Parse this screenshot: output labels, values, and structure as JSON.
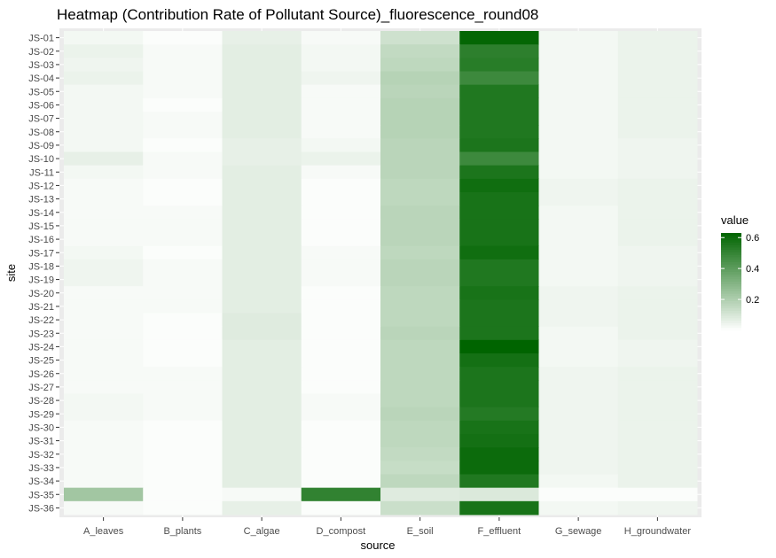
{
  "chart_data": {
    "type": "heatmap",
    "title": "Heatmap (Contribution Rate of Pollutant Source)_fluorescence_round08",
    "xlabel": "source",
    "ylabel": "site",
    "x_categories": [
      "A_leaves",
      "B_plants",
      "C_algae",
      "D_compost",
      "E_soil",
      "F_effluent",
      "G_sewage",
      "H_groundwater"
    ],
    "y_categories": [
      "JS-01",
      "JS-02",
      "JS-03",
      "JS-04",
      "JS-05",
      "JS-06",
      "JS-07",
      "JS-08",
      "JS-09",
      "JS-10",
      "JS-11",
      "JS-12",
      "JS-13",
      "JS-14",
      "JS-15",
      "JS-16",
      "JS-17",
      "JS-18",
      "JS-19",
      "JS-20",
      "JS-21",
      "JS-22",
      "JS-23",
      "JS-24",
      "JS-25",
      "JS-26",
      "JS-27",
      "JS-28",
      "JS-29",
      "JS-30",
      "JS-31",
      "JS-32",
      "JS-33",
      "JS-34",
      "JS-35",
      "JS-36"
    ],
    "values": [
      [
        0.03,
        0.01,
        0.06,
        0.02,
        0.12,
        0.62,
        0.03,
        0.05
      ],
      [
        0.05,
        0.02,
        0.07,
        0.03,
        0.15,
        0.52,
        0.03,
        0.05
      ],
      [
        0.04,
        0.02,
        0.07,
        0.03,
        0.16,
        0.53,
        0.03,
        0.05
      ],
      [
        0.05,
        0.02,
        0.07,
        0.04,
        0.18,
        0.48,
        0.03,
        0.05
      ],
      [
        0.03,
        0.02,
        0.07,
        0.02,
        0.17,
        0.55,
        0.03,
        0.05
      ],
      [
        0.03,
        0.01,
        0.07,
        0.02,
        0.18,
        0.55,
        0.03,
        0.05
      ],
      [
        0.03,
        0.02,
        0.07,
        0.02,
        0.18,
        0.55,
        0.03,
        0.05
      ],
      [
        0.03,
        0.02,
        0.07,
        0.02,
        0.18,
        0.55,
        0.03,
        0.05
      ],
      [
        0.03,
        0.01,
        0.06,
        0.03,
        0.17,
        0.56,
        0.03,
        0.04
      ],
      [
        0.06,
        0.02,
        0.06,
        0.05,
        0.17,
        0.48,
        0.03,
        0.04
      ],
      [
        0.03,
        0.02,
        0.07,
        0.02,
        0.17,
        0.56,
        0.03,
        0.04
      ],
      [
        0.02,
        0.01,
        0.07,
        0.01,
        0.16,
        0.59,
        0.04,
        0.05
      ],
      [
        0.02,
        0.01,
        0.07,
        0.01,
        0.16,
        0.57,
        0.04,
        0.05
      ],
      [
        0.02,
        0.02,
        0.07,
        0.01,
        0.17,
        0.57,
        0.03,
        0.05
      ],
      [
        0.02,
        0.02,
        0.07,
        0.01,
        0.17,
        0.57,
        0.03,
        0.05
      ],
      [
        0.02,
        0.02,
        0.07,
        0.01,
        0.17,
        0.57,
        0.03,
        0.05
      ],
      [
        0.03,
        0.01,
        0.07,
        0.02,
        0.16,
        0.59,
        0.03,
        0.04
      ],
      [
        0.04,
        0.02,
        0.07,
        0.02,
        0.17,
        0.55,
        0.03,
        0.04
      ],
      [
        0.04,
        0.02,
        0.07,
        0.02,
        0.17,
        0.55,
        0.03,
        0.04
      ],
      [
        0.02,
        0.02,
        0.07,
        0.01,
        0.16,
        0.57,
        0.04,
        0.05
      ],
      [
        0.02,
        0.02,
        0.07,
        0.01,
        0.16,
        0.56,
        0.04,
        0.05
      ],
      [
        0.02,
        0.01,
        0.08,
        0.01,
        0.16,
        0.56,
        0.04,
        0.05
      ],
      [
        0.02,
        0.01,
        0.08,
        0.01,
        0.17,
        0.56,
        0.03,
        0.05
      ],
      [
        0.02,
        0.01,
        0.07,
        0.01,
        0.16,
        0.63,
        0.03,
        0.04
      ],
      [
        0.02,
        0.01,
        0.07,
        0.01,
        0.16,
        0.58,
        0.03,
        0.04
      ],
      [
        0.02,
        0.02,
        0.07,
        0.01,
        0.16,
        0.56,
        0.04,
        0.05
      ],
      [
        0.02,
        0.02,
        0.07,
        0.01,
        0.16,
        0.56,
        0.04,
        0.05
      ],
      [
        0.03,
        0.02,
        0.07,
        0.02,
        0.16,
        0.56,
        0.04,
        0.05
      ],
      [
        0.03,
        0.02,
        0.07,
        0.02,
        0.17,
        0.54,
        0.04,
        0.05
      ],
      [
        0.02,
        0.01,
        0.07,
        0.01,
        0.16,
        0.57,
        0.04,
        0.05
      ],
      [
        0.02,
        0.01,
        0.07,
        0.01,
        0.16,
        0.58,
        0.04,
        0.05
      ],
      [
        0.02,
        0.01,
        0.07,
        0.01,
        0.15,
        0.6,
        0.04,
        0.05
      ],
      [
        0.02,
        0.01,
        0.07,
        0.01,
        0.14,
        0.6,
        0.04,
        0.05
      ],
      [
        0.02,
        0.01,
        0.07,
        0.01,
        0.16,
        0.55,
        0.03,
        0.05
      ],
      [
        0.23,
        0.01,
        0.02,
        0.51,
        0.08,
        0.09,
        0.01,
        0.01
      ],
      [
        0.02,
        0.01,
        0.06,
        0.01,
        0.13,
        0.57,
        0.03,
        0.04
      ]
    ],
    "legend": {
      "title": "value",
      "ticks": [
        0.2,
        0.4,
        0.6
      ],
      "range": [
        0.0,
        0.63
      ],
      "low_color": "#ffffff",
      "high_color": "#006400",
      "placement": "right"
    },
    "panel_background": "#ebebeb",
    "grid_color": "#ffffff"
  }
}
